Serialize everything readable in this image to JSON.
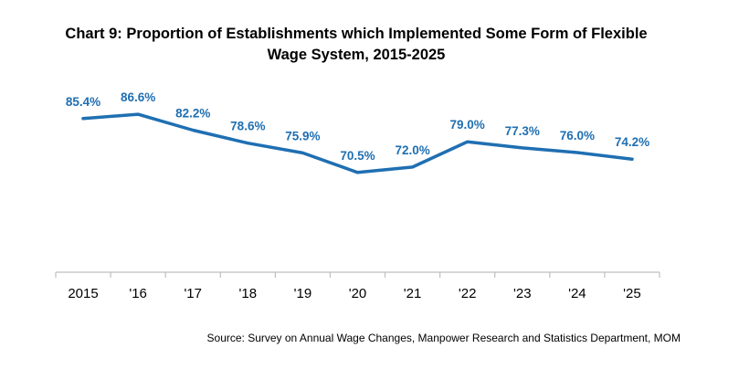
{
  "title_line1": "Chart 9: Proportion of Establishments which Implemented Some Form of Flexible",
  "title_line2": "Wage System, 2015-2025",
  "source": "Source: Survey on Annual Wage Changes, Manpower Research and Statistics Department, MOM",
  "colors": {
    "line": "#1F6FB2",
    "labels": "#1F6FB2",
    "axis": "#BFBFBF"
  },
  "chart_data": {
    "type": "line",
    "title": "Chart 9: Proportion of Establishments which Implemented Some Form of Flexible Wage System, 2015-2025",
    "categories": [
      "2015",
      "'16",
      "'17",
      "'18",
      "'19",
      "'20",
      "'21",
      "'22",
      "'23",
      "'24",
      "'25"
    ],
    "series": [
      {
        "values": [
          85.4,
          86.6,
          82.2,
          78.6,
          75.9,
          70.5,
          72.0,
          79.0,
          77.3,
          76.0,
          74.2
        ],
        "labels": [
          "85.4%",
          "86.6%",
          "82.2%",
          "78.6%",
          "75.9%",
          "70.5%",
          "72.0%",
          "79.0%",
          "77.3%",
          "76.0%",
          "74.2%"
        ]
      }
    ],
    "ylim": [
      0,
      100
    ],
    "grid": false,
    "y_axis_visible": false
  }
}
